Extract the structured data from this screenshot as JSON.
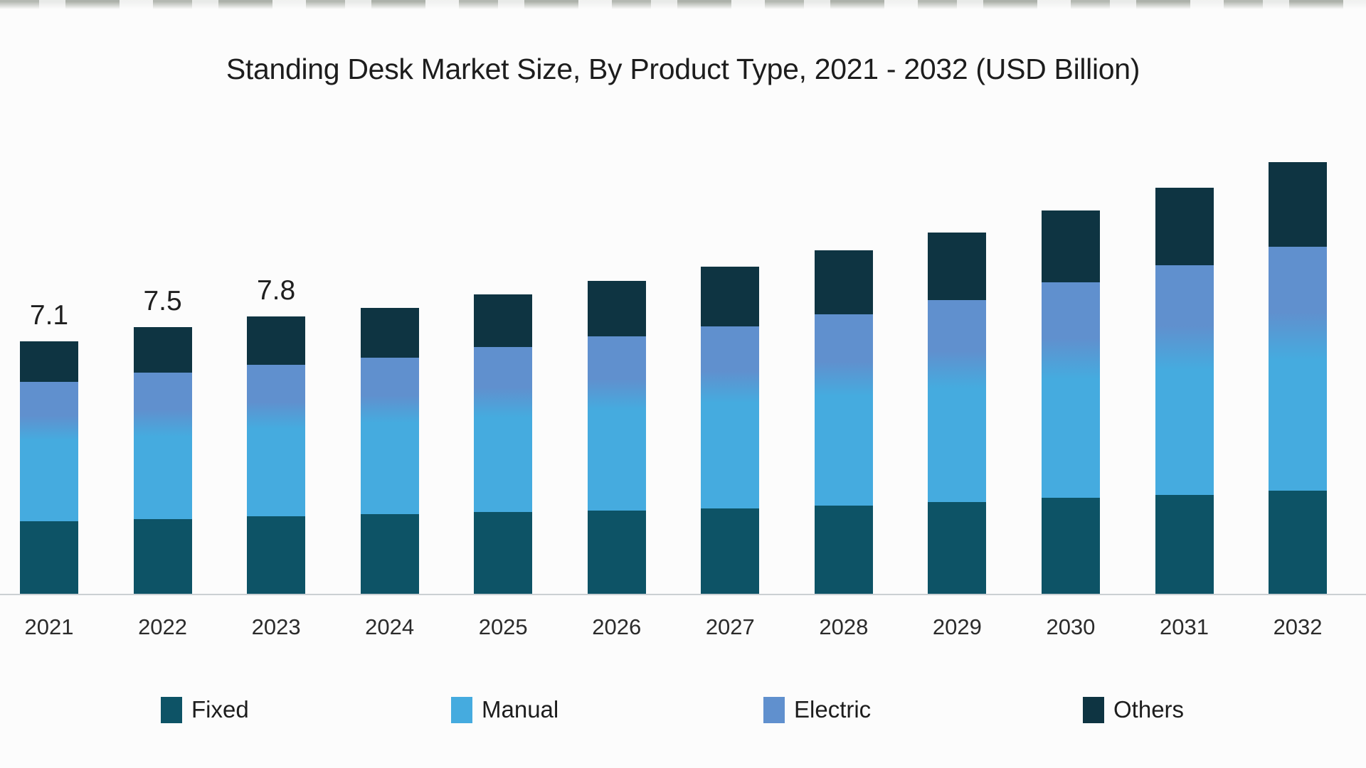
{
  "title": "Standing Desk Market Size, By Product Type, 2021 - 2032 (USD Billion)",
  "colors": {
    "fixed": "#0d5366",
    "manual": "#45abdf",
    "electric": "#6090ce",
    "others": "#0e3442",
    "axis_line": "#cbd0d3",
    "title_text": "#1d1d1d",
    "tick_text": "#2b2b2b",
    "background": "#fcfcfc"
  },
  "chart_data": {
    "type": "bar",
    "stacked": true,
    "title": "Standing Desk Market Size, By Product Type, 2021 - 2032 (USD Billion)",
    "unit": "USD Billion",
    "xlabel": "",
    "ylabel": "",
    "ylim": [
      0,
      13
    ],
    "grid": false,
    "legend_position": "bottom",
    "categories": [
      "2021",
      "2022",
      "2023",
      "2024",
      "2025",
      "2026",
      "2027",
      "2028",
      "2029",
      "2030",
      "2031",
      "2032"
    ],
    "series": [
      {
        "name": "Fixed",
        "color_key": "fixed",
        "values": [
          2.04,
          2.1,
          2.18,
          2.24,
          2.3,
          2.34,
          2.4,
          2.48,
          2.58,
          2.7,
          2.78,
          2.9
        ]
      },
      {
        "name": "Manual",
        "color_key": "manual",
        "values": [
          2.28,
          2.32,
          2.46,
          2.56,
          2.66,
          2.82,
          2.96,
          3.08,
          3.2,
          3.34,
          3.52,
          3.68
        ]
      },
      {
        "name": "Electric",
        "color_key": "electric",
        "values": [
          1.64,
          1.8,
          1.8,
          1.84,
          1.98,
          2.08,
          2.16,
          2.3,
          2.48,
          2.72,
          2.94,
          3.18
        ]
      },
      {
        "name": "Others",
        "color_key": "others",
        "values": [
          1.14,
          1.28,
          1.36,
          1.4,
          1.48,
          1.56,
          1.68,
          1.8,
          1.9,
          2.02,
          2.18,
          2.38
        ]
      }
    ],
    "totals": [
      7.1,
      7.5,
      7.8,
      8.0,
      8.4,
      8.8,
      9.2,
      9.7,
      10.2,
      10.8,
      11.4,
      12.1
    ],
    "total_labels": [
      "7.1",
      "7.5",
      "7.8",
      "",
      "",
      "",
      "",
      "",
      "",
      "",
      "",
      ""
    ]
  },
  "legend": {
    "items": [
      {
        "label": "Fixed",
        "color_key": "fixed"
      },
      {
        "label": "Manual",
        "color_key": "manual"
      },
      {
        "label": "Electric",
        "color_key": "electric"
      },
      {
        "label": "Others",
        "color_key": "others"
      }
    ]
  }
}
